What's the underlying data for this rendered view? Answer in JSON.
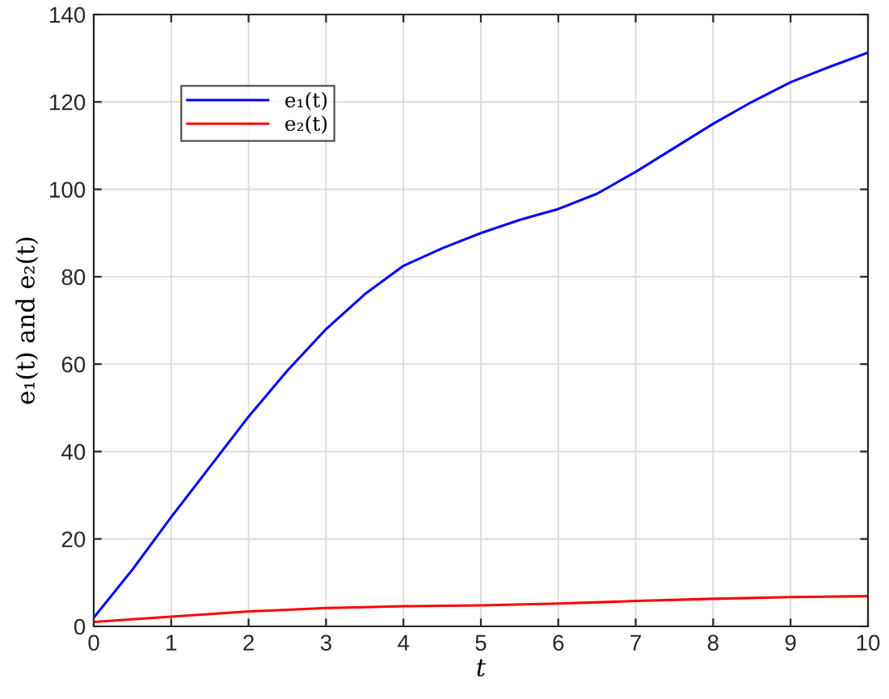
{
  "chart_data": {
    "type": "line",
    "xlabel": "t",
    "ylabel": "e₁(t) and e₂(t)",
    "xlim": [
      0,
      10
    ],
    "ylim": [
      0,
      140
    ],
    "xticks": [
      0,
      1,
      2,
      3,
      4,
      5,
      6,
      7,
      8,
      9,
      10
    ],
    "yticks": [
      0,
      20,
      40,
      60,
      80,
      100,
      120,
      140
    ],
    "grid": true,
    "legend": "top left",
    "line_style": "solid",
    "series": [
      {
        "name": "e₁(t)",
        "color": "#0000ff",
        "x": [
          0,
          0.5,
          1,
          1.5,
          2,
          2.5,
          3,
          3.5,
          4,
          4.5,
          5,
          5.5,
          5.7,
          6,
          6.5,
          7,
          7.5,
          8,
          8.5,
          9,
          9.5,
          10
        ],
        "values": [
          2,
          13,
          25,
          36.5,
          48,
          58.5,
          68,
          76,
          82.5,
          86.5,
          90,
          93,
          94,
          95.5,
          99,
          104,
          109.5,
          115,
          120,
          124.5,
          128,
          131.3
        ]
      },
      {
        "name": "e₂(t)",
        "color": "#ff0000",
        "x": [
          0,
          0.5,
          1,
          1.5,
          2,
          2.5,
          3,
          3.5,
          4,
          5,
          6,
          7,
          8,
          9,
          10
        ],
        "values": [
          1,
          1.6,
          2.2,
          2.8,
          3.4,
          3.8,
          4.2,
          4.4,
          4.6,
          4.8,
          5.2,
          5.8,
          6.3,
          6.7,
          6.9
        ]
      }
    ]
  }
}
